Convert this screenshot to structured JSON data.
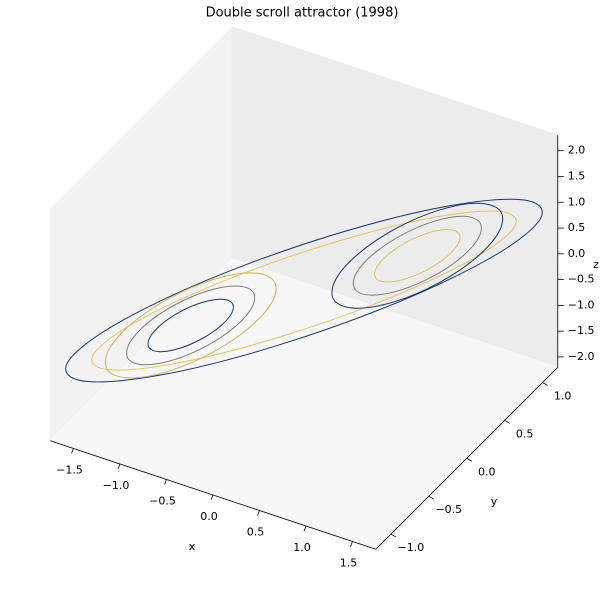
{
  "chart_data": {
    "type": "line3d",
    "title": "Double scroll attractor (1998)",
    "xlabel": "x",
    "ylabel": "y",
    "zlabel": "z",
    "xlim": [
      -1.75,
      1.75
    ],
    "ylim": [
      -1.2,
      1.2
    ],
    "zlim": [
      -2.2,
      2.3
    ],
    "xticks": [
      {
        "value": -1.5,
        "label": "−1.5"
      },
      {
        "value": -1,
        "label": "−1.0"
      },
      {
        "value": -0.5,
        "label": "−0.5"
      },
      {
        "value": 0,
        "label": "0.0"
      },
      0.5,
      {
        "value": 1,
        "label": "1.0"
      },
      1.5
    ],
    "yticks": [
      {
        "value": -1,
        "label": "−1.0"
      },
      {
        "value": -0.5,
        "label": "−0.5"
      },
      {
        "value": 0,
        "label": "0.0"
      },
      0.5,
      {
        "value": 1,
        "label": "1.0"
      }
    ],
    "zticks": [
      {
        "value": -2,
        "label": "−2.0"
      },
      {
        "value": -1.5,
        "label": "−1.5"
      },
      {
        "value": -1,
        "label": "−1.0"
      },
      {
        "value": -0.5,
        "label": "−0.5"
      },
      {
        "value": 0,
        "label": "0.0"
      },
      0.5,
      {
        "value": 1,
        "label": "1.0"
      },
      1.5,
      {
        "value": 2,
        "label": "2.0"
      }
    ],
    "grid": false,
    "series": [
      {
        "color": "#1d3466",
        "x": [
          1.61,
          1.394,
          0.805,
          0,
          -0.805,
          -1.394,
          -1.61,
          -1.394,
          -0.805,
          0,
          0.805,
          1.394
        ],
        "y": [
          1.15,
          0.816,
          0.263,
          -0.36,
          -0.887,
          -1.176,
          -1.15,
          -0.816,
          -0.263,
          0.36,
          0.887,
          1.176
        ],
        "z": [
          0.69,
          0.328,
          -0.123,
          -0.54,
          -0.813,
          -0.868,
          -0.69,
          -0.328,
          0.123,
          0.54,
          0.813,
          0.868
        ]
      },
      {
        "color": "#d9c766",
        "x": [
          1.435,
          1.243,
          0.718,
          0,
          -0.718,
          -1.243,
          -1.435,
          -1.243,
          -0.718,
          0,
          0.718,
          1.243
        ],
        "y": [
          1.025,
          0.738,
          0.253,
          -0.3,
          -0.773,
          -1.038,
          -1.025,
          -0.738,
          -0.253,
          0.3,
          0.773,
          1.038
        ],
        "z": [
          0.615,
          0.308,
          -0.082,
          -0.45,
          -0.698,
          -0.758,
          -0.615,
          -0.308,
          0.082,
          0.45,
          0.698,
          0.758
        ]
      },
      {
        "color": "#1d3466",
        "x": [
          1.33,
          1.255,
          1.05,
          0.77,
          0.49,
          0.285,
          0.21,
          0.285,
          0.49,
          0.77,
          1.05,
          1.255
        ],
        "y": [
          0.95,
          0.747,
          0.49,
          0.25,
          0.09,
          0.053,
          0.15,
          0.353,
          0.61,
          0.85,
          1.01,
          1.047
        ],
        "z": [
          0.57,
          0.313,
          0.06,
          -0.12,
          -0.18,
          -0.103,
          0.09,
          0.347,
          0.6,
          0.78,
          0.84,
          0.763
        ]
      },
      {
        "color": "#7d7c78",
        "x": [
          1.19,
          1.134,
          0.98,
          0.77,
          0.56,
          0.406,
          0.35,
          0.406,
          0.56,
          0.77,
          0.98,
          1.134
        ],
        "y": [
          0.85,
          0.697,
          0.505,
          0.325,
          0.205,
          0.177,
          0.25,
          0.403,
          0.595,
          0.775,
          0.895,
          0.923
        ],
        "z": [
          0.51,
          0.317,
          0.127,
          -0.008,
          -0.053,
          0.005,
          0.15,
          0.343,
          0.533,
          0.668,
          0.713,
          0.655
        ]
      },
      {
        "color": "#d6c566",
        "x": [
          1.05,
          1.012,
          0.91,
          0.77,
          0.63,
          0.528,
          0.49,
          0.528,
          0.63,
          0.77,
          0.91,
          1.012
        ],
        "y": [
          0.75,
          0.648,
          0.52,
          0.4,
          0.32,
          0.302,
          0.35,
          0.452,
          0.58,
          0.7,
          0.78,
          0.798
        ],
        "z": [
          0.45,
          0.321,
          0.195,
          0.105,
          0.075,
          0.113,
          0.21,
          0.339,
          0.465,
          0.555,
          0.585,
          0.547
        ]
      },
      {
        "color": "#c9b75b",
        "x": [
          -1.33,
          -1.255,
          -1.05,
          -0.77,
          -0.49,
          -0.285,
          -0.21,
          -0.285,
          -0.49,
          -0.77,
          -1.05,
          -1.255
        ],
        "y": [
          -0.95,
          -0.747,
          -0.49,
          -0.25,
          -0.09,
          -0.053,
          -0.15,
          -0.353,
          -0.61,
          -0.85,
          -1.01,
          -1.047
        ],
        "z": [
          -0.57,
          -0.313,
          -0.06,
          0.12,
          0.18,
          0.103,
          -0.09,
          -0.347,
          -0.6,
          -0.78,
          -0.84,
          -0.763
        ]
      },
      {
        "color": "#7d7c78",
        "x": [
          -1.19,
          -1.134,
          -0.98,
          -0.77,
          -0.56,
          -0.406,
          -0.35,
          -0.406,
          -0.56,
          -0.77,
          -0.98,
          -1.134
        ],
        "y": [
          -0.85,
          -0.697,
          -0.505,
          -0.325,
          -0.205,
          -0.177,
          -0.25,
          -0.403,
          -0.595,
          -0.775,
          -0.895,
          -0.923
        ],
        "z": [
          -0.51,
          -0.317,
          -0.127,
          0.008,
          0.053,
          -0.005,
          -0.15,
          -0.343,
          -0.533,
          -0.668,
          -0.713,
          -0.655
        ]
      },
      {
        "color": "#1d3466",
        "x": [
          -1.05,
          -1.012,
          -0.91,
          -0.77,
          -0.63,
          -0.528,
          -0.49,
          -0.528,
          -0.63,
          -0.77,
          -0.91,
          -1.012
        ],
        "y": [
          -0.75,
          -0.648,
          -0.52,
          -0.4,
          -0.32,
          -0.302,
          -0.35,
          -0.452,
          -0.58,
          -0.7,
          -0.78,
          -0.798
        ],
        "z": [
          -0.45,
          -0.321,
          -0.195,
          -0.105,
          -0.075,
          -0.113,
          -0.21,
          -0.339,
          -0.465,
          -0.555,
          -0.585,
          -0.547
        ]
      }
    ]
  }
}
